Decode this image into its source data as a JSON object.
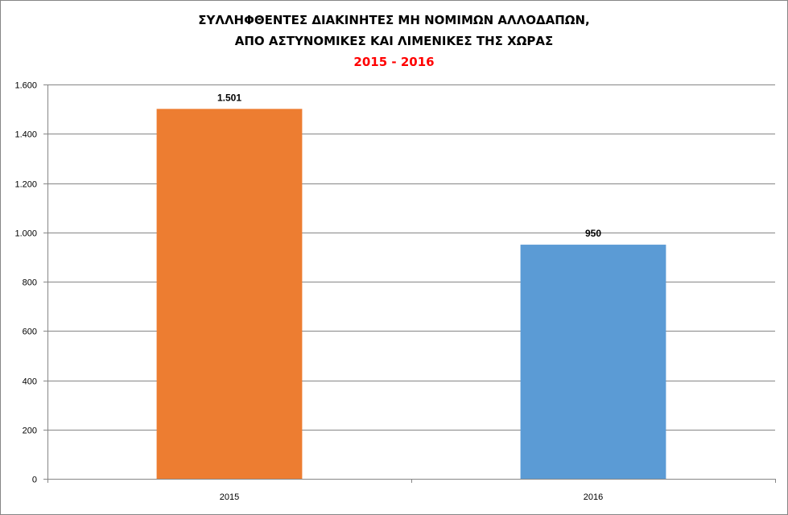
{
  "chart_data": {
    "type": "bar",
    "title_lines": [
      "ΣΥΛΛΗΦΘΕΝΤΕΣ ΔΙΑΚΙΝΗΤΕΣ ΜΗ ΝΟΜΙΜΩΝ ΑΛΛΟΔΑΠΩΝ,",
      "ΑΠΟ ΑΣΤΥΝΟΜΙΚΕΣ ΚΑΙ ΛΙΜΕΝΙΚΕΣ ΤΗΣ ΧΩΡΑΣ"
    ],
    "subtitle": "2015 - 2016",
    "categories": [
      "2015",
      "2016"
    ],
    "values": [
      1501,
      950
    ],
    "value_labels": [
      "1.501",
      "950"
    ],
    "bar_colors": [
      "#ED7D31",
      "#5B9BD5"
    ],
    "subtitle_color": "#FF0000",
    "ylim": [
      0,
      1600
    ],
    "yticks": [
      0,
      200,
      400,
      600,
      800,
      1000,
      1200,
      1400,
      1600
    ],
    "ytick_labels": [
      "0",
      "200",
      "400",
      "600",
      "800",
      "1.000",
      "1.200",
      "1.400",
      "1.600"
    ],
    "grid": true,
    "legend": "none",
    "xlabel": "",
    "ylabel": ""
  }
}
